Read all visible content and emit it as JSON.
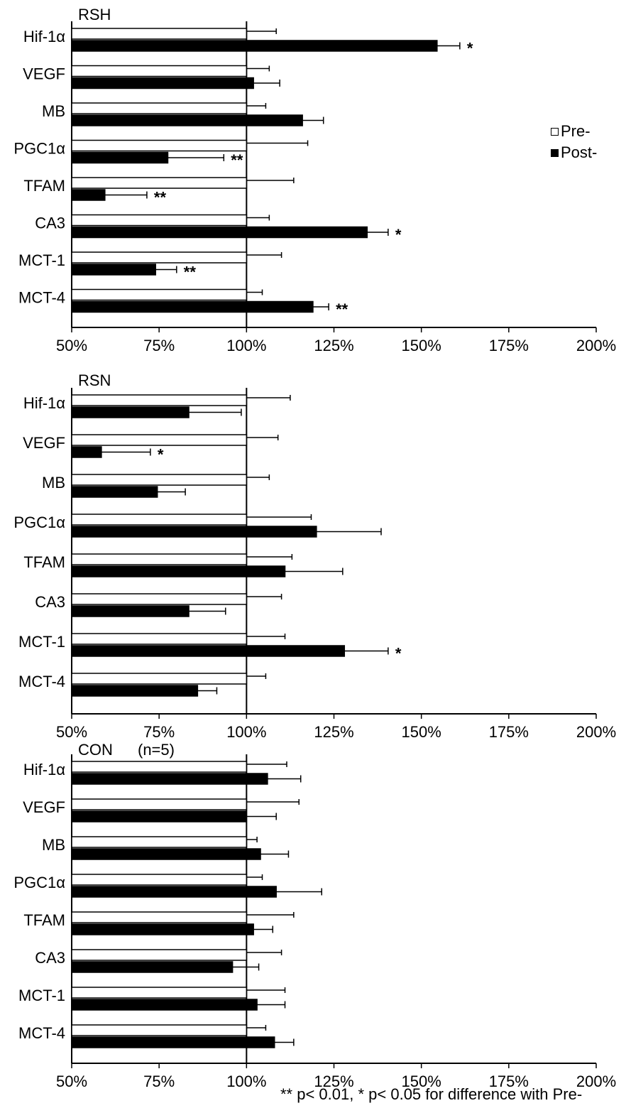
{
  "chart_data": [
    {
      "type": "bar",
      "orientation": "horizontal",
      "title": "RSH",
      "categories": [
        "Hif-1α",
        "VEGF",
        "MB",
        "PGC1α",
        "TFAM",
        "CA3",
        "MCT-1",
        "MCT-4"
      ],
      "series": [
        {
          "name": "Pre-",
          "color": "#ffffff",
          "values": [
            100,
            100,
            100,
            100,
            100,
            100,
            100,
            100
          ],
          "errors": [
            8.5,
            6.5,
            5.5,
            17.5,
            13.5,
            6.5,
            10,
            4.5
          ]
        },
        {
          "name": "Post-",
          "color": "#000000",
          "values": [
            154.5,
            102,
            116,
            77.5,
            59.5,
            134.5,
            74,
            119
          ],
          "errors": [
            6.5,
            7.5,
            6,
            16,
            12,
            6,
            6,
            4.5
          ]
        }
      ],
      "annotations": [
        "*",
        "",
        "",
        "**",
        "**",
        "*",
        "**",
        "**"
      ],
      "xlim": [
        50,
        200
      ],
      "xticks": [
        "50%",
        "75%",
        "100%",
        "125%",
        "150%",
        "175%",
        "200%"
      ]
    },
    {
      "type": "bar",
      "orientation": "horizontal",
      "title": "RSN",
      "categories": [
        "Hif-1α",
        "VEGF",
        "MB",
        "PGC1α",
        "TFAM",
        "CA3",
        "MCT-1",
        "MCT-4"
      ],
      "series": [
        {
          "name": "Pre-",
          "color": "#ffffff",
          "values": [
            100,
            100,
            100,
            100,
            100,
            100,
            100,
            100
          ],
          "errors": [
            12.5,
            9,
            6.5,
            18.5,
            13,
            10,
            11,
            5.5
          ]
        },
        {
          "name": "Post-",
          "color": "#000000",
          "values": [
            83.5,
            58.5,
            74.5,
            120,
            111,
            83.5,
            128,
            86
          ],
          "errors": [
            15,
            14,
            8,
            18.5,
            16.5,
            10.5,
            12.5,
            5.5
          ]
        }
      ],
      "annotations": [
        "",
        "*",
        "",
        "",
        "",
        "",
        "*",
        ""
      ],
      "xlim": [
        50,
        200
      ],
      "xticks": [
        "50%",
        "75%",
        "100%",
        "125%",
        "150%",
        "175%",
        "200%"
      ]
    },
    {
      "type": "bar",
      "orientation": "horizontal",
      "title": "CON",
      "subtitle": "(n=5)",
      "categories": [
        "Hif-1α",
        "VEGF",
        "MB",
        "PGC1α",
        "TFAM",
        "CA3",
        "MCT-1",
        "MCT-4"
      ],
      "series": [
        {
          "name": "Pre-",
          "color": "#ffffff",
          "values": [
            100,
            100,
            100,
            100,
            100,
            100,
            100,
            100
          ],
          "errors": [
            11.5,
            15,
            3,
            4.5,
            13.5,
            10,
            11,
            5.5
          ]
        },
        {
          "name": "Post-",
          "color": "#000000",
          "values": [
            106,
            100,
            104,
            108.5,
            102,
            96,
            103,
            108
          ],
          "errors": [
            9.5,
            8.5,
            8,
            13,
            5.5,
            7.5,
            8,
            5.5
          ]
        }
      ],
      "annotations": [
        "",
        "",
        "",
        "",
        "",
        "",
        "",
        ""
      ],
      "xlim": [
        50,
        200
      ],
      "xticks": [
        "50%",
        "75%",
        "100%",
        "125%",
        "150%",
        "175%",
        "200%"
      ]
    }
  ],
  "legend": {
    "pre_label": "Pre-",
    "post_label": "Post-"
  },
  "footnote": "** p< 0.01, * p< 0.05 for difference with Pre-"
}
